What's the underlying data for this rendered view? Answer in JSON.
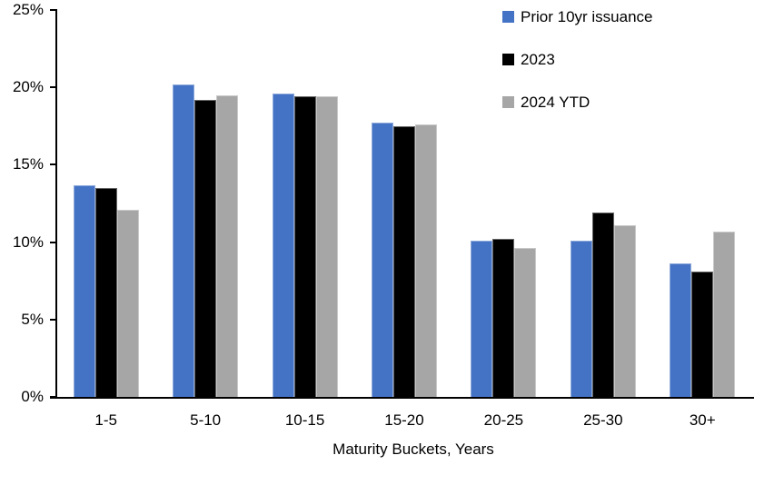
{
  "chart_data": {
    "type": "bar",
    "title": "",
    "xlabel": "Maturity Buckets, Years",
    "ylabel": "",
    "ylim": [
      0,
      25
    ],
    "y_tick_values": [
      0,
      5,
      10,
      15,
      20,
      25
    ],
    "y_tick_labels": [
      "0%",
      "5%",
      "10%",
      "15%",
      "20%",
      "25%"
    ],
    "categories": [
      "1-5",
      "5-10",
      "10-15",
      "15-20",
      "20-25",
      "25-30",
      "30+"
    ],
    "series": [
      {
        "name": "Prior 10yr issuance",
        "color": "#4472C4",
        "values": [
          13.7,
          20.2,
          19.6,
          17.7,
          10.1,
          10.1,
          8.6
        ]
      },
      {
        "name": "2023",
        "color": "#000000",
        "values": [
          13.5,
          19.2,
          19.4,
          17.5,
          10.2,
          11.9,
          8.1
        ]
      },
      {
        "name": "2024 YTD",
        "color": "#A6A6A6",
        "values": [
          12.1,
          19.5,
          19.4,
          17.6,
          9.6,
          11.1,
          10.7
        ]
      }
    ],
    "legend_position": "top-right",
    "grid": false,
    "axis_color": "#000000"
  }
}
